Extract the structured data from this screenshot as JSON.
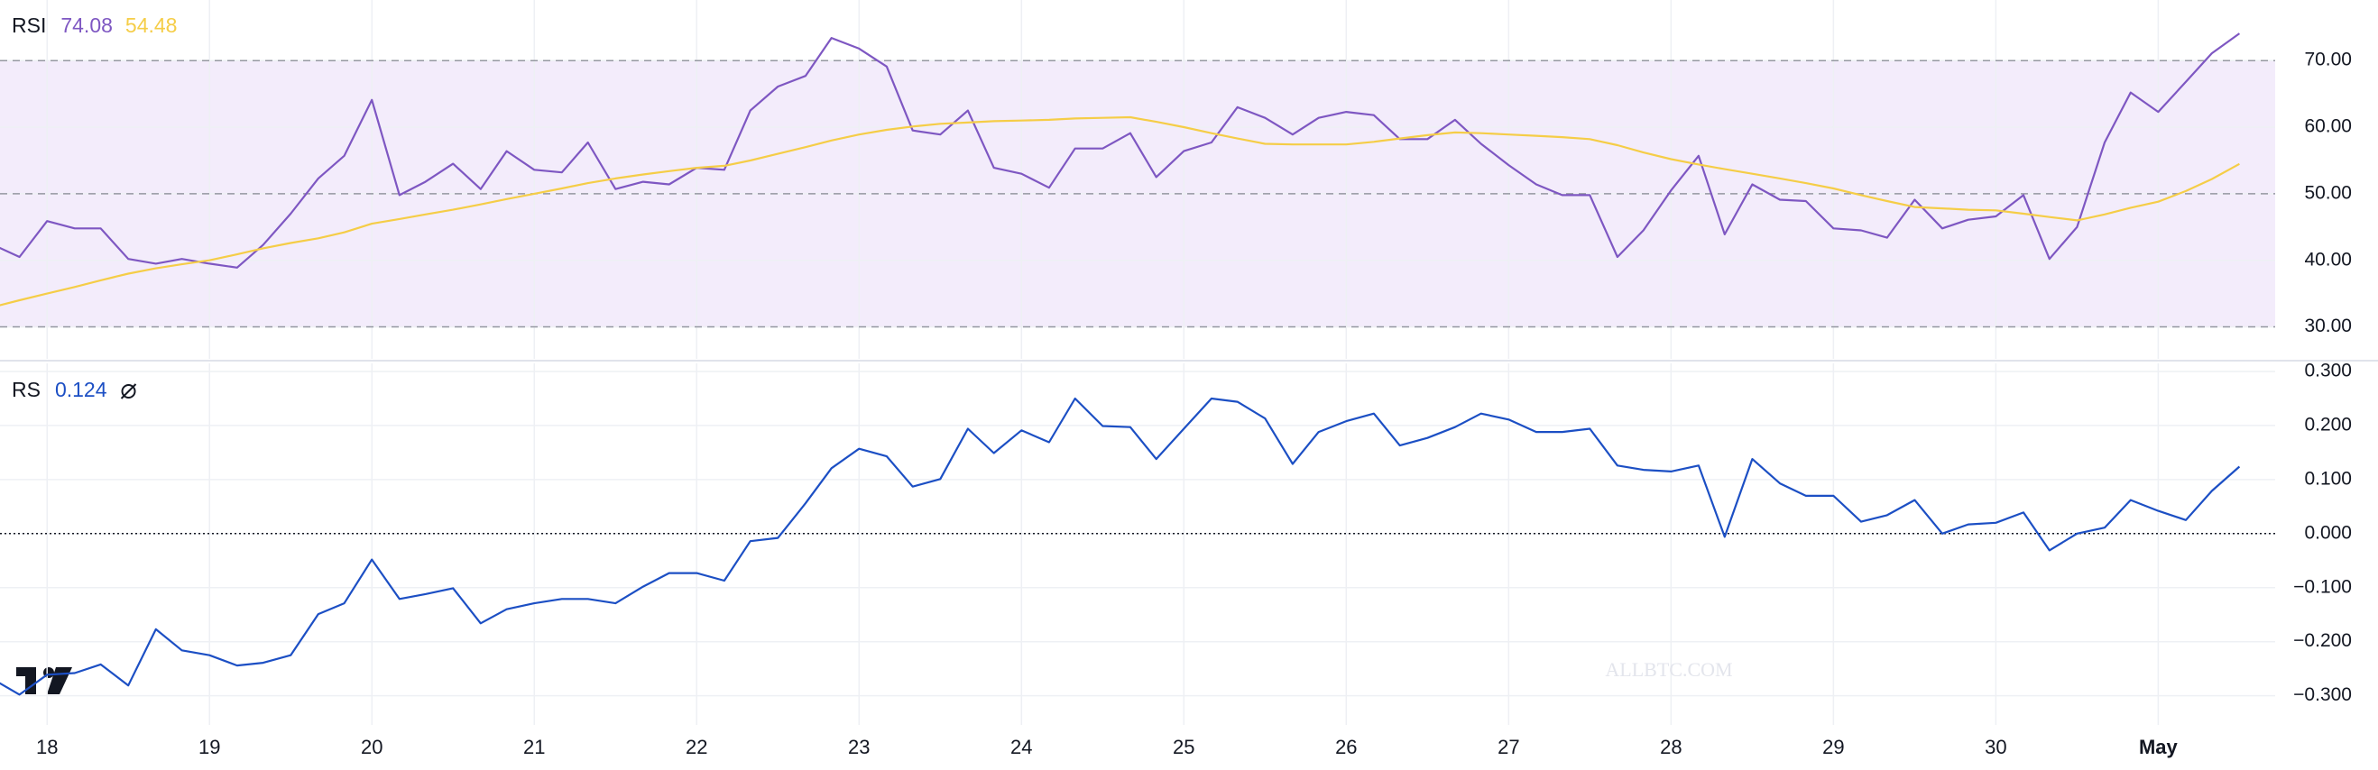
{
  "chart_data": [
    {
      "type": "line",
      "title": "RSI",
      "x": [
        17.67,
        17.83,
        18,
        18.17,
        18.33,
        18.5,
        18.67,
        18.83,
        19,
        19.17,
        19.33,
        19.5,
        19.67,
        19.83,
        20,
        20.17,
        20.33,
        20.5,
        20.67,
        20.83,
        21,
        21.17,
        21.33,
        21.5,
        21.67,
        21.83,
        22,
        22.17,
        22.33,
        22.5,
        22.67,
        22.83,
        23,
        23.17,
        23.33,
        23.5,
        23.67,
        23.83,
        24,
        24.17,
        24.33,
        24.5,
        24.67,
        24.83,
        25,
        25.17,
        25.33,
        25.5,
        25.67,
        25.83,
        26,
        26.17,
        26.33,
        26.5,
        26.67,
        26.83,
        27,
        27.17,
        27.33,
        27.5,
        27.67,
        27.83,
        28,
        28.17,
        28.33,
        28.5,
        28.67,
        28.83,
        29,
        29.17,
        29.33,
        29.5,
        29.67,
        29.83,
        30,
        30.17,
        30.33,
        30.5,
        30.67,
        30.83,
        31,
        31.17,
        31.33,
        31.5
      ],
      "series": [
        {
          "color": "#7e57c2",
          "values": [
            42.3,
            40.5,
            45.9,
            44.8,
            44.8,
            40.2,
            39.5,
            40.2,
            39.5,
            38.9,
            42.3,
            47.0,
            52.3,
            55.7,
            64.1,
            49.8,
            51.8,
            54.5,
            50.7,
            56.4,
            53.6,
            53.2,
            57.7,
            50.7,
            51.8,
            51.4,
            53.9,
            53.6,
            62.5,
            66.1,
            67.7,
            73.4,
            71.8,
            69.1,
            59.5,
            58.9,
            62.5,
            53.9,
            53.0,
            50.9,
            56.8,
            56.8,
            59.1,
            52.5,
            56.4,
            57.7,
            63.0,
            61.4,
            58.9,
            61.4,
            62.3,
            61.8,
            58.2,
            58.2,
            61.1,
            57.5,
            54.3,
            51.4,
            49.8,
            49.8,
            40.5,
            44.5,
            50.5,
            55.7,
            43.9,
            51.4,
            49.1,
            48.9,
            44.8,
            44.5,
            43.4,
            49.1,
            44.8,
            46.1,
            46.6,
            49.8,
            40.2,
            45.0,
            57.7,
            65.2,
            62.3,
            66.8,
            71.1,
            74.08
          ]
        },
        {
          "color": "#f5cd47",
          "values": [
            33.0,
            34.0,
            35.0,
            36.0,
            37.0,
            38.0,
            38.8,
            39.4,
            40.0,
            40.9,
            41.8,
            42.6,
            43.3,
            44.2,
            45.5,
            46.2,
            46.9,
            47.6,
            48.4,
            49.2,
            50.0,
            50.8,
            51.6,
            52.3,
            52.9,
            53.4,
            53.9,
            54.2,
            55.0,
            56.0,
            57.0,
            58.0,
            58.9,
            59.6,
            60.1,
            60.5,
            60.7,
            60.9,
            61.0,
            61.1,
            61.3,
            61.4,
            61.5,
            60.8,
            60.0,
            59.1,
            58.3,
            57.5,
            57.4,
            57.4,
            57.4,
            57.8,
            58.3,
            58.8,
            59.2,
            59.1,
            58.9,
            58.7,
            58.5,
            58.2,
            57.3,
            56.2,
            55.2,
            54.4,
            53.7,
            53.0,
            52.3,
            51.6,
            50.8,
            49.8,
            48.9,
            48.0,
            47.8,
            47.6,
            47.5,
            47.0,
            46.5,
            46.0,
            46.9,
            47.9,
            48.8,
            50.4,
            52.2,
            54.48
          ]
        }
      ],
      "xlim": [
        17.71,
        31.72
      ],
      "ylim": [
        25.2,
        79.1
      ],
      "xticks": [
        18,
        19,
        20,
        21,
        22,
        23,
        24,
        25,
        26,
        27,
        28,
        29,
        30,
        31
      ],
      "yticks": [
        {
          "value": 30,
          "label": "30.00"
        },
        {
          "value": 40,
          "label": "40.00"
        },
        {
          "value": 50,
          "label": "50.00"
        },
        {
          "value": 60,
          "label": "60.00"
        },
        {
          "value": 70,
          "label": "70.00"
        }
      ],
      "levels": [
        30,
        50,
        70
      ],
      "band_color": "#f3ecfb",
      "grid": true
    },
    {
      "type": "line",
      "title": "RS",
      "watermark": "ALLBTC.COM",
      "x": [
        17.67,
        17.83,
        18,
        18.17,
        18.33,
        18.5,
        18.67,
        18.83,
        19,
        19.17,
        19.33,
        19.5,
        19.67,
        19.83,
        20,
        20.17,
        20.33,
        20.5,
        20.67,
        20.83,
        21,
        21.17,
        21.33,
        21.5,
        21.67,
        21.83,
        22,
        22.17,
        22.33,
        22.5,
        22.67,
        22.83,
        23,
        23.17,
        23.33,
        23.5,
        23.67,
        23.83,
        24,
        24.17,
        24.33,
        24.5,
        24.67,
        24.83,
        25,
        25.17,
        25.33,
        25.5,
        25.67,
        25.83,
        26,
        26.17,
        26.33,
        26.5,
        26.67,
        26.83,
        27,
        27.17,
        27.33,
        27.5,
        27.67,
        27.83,
        28,
        28.17,
        28.33,
        28.5,
        28.67,
        28.83,
        29,
        29.17,
        29.33,
        29.5,
        29.67,
        29.83,
        30,
        30.17,
        30.33,
        30.5,
        30.67,
        30.83,
        31,
        31.17,
        31.33,
        31.5
      ],
      "series": [
        {
          "color": "#1c4fc4",
          "values": [
            -0.27,
            -0.298,
            -0.261,
            -0.258,
            -0.242,
            -0.281,
            -0.177,
            -0.216,
            -0.225,
            -0.244,
            -0.239,
            -0.225,
            -0.149,
            -0.129,
            -0.048,
            -0.121,
            -0.112,
            -0.101,
            -0.166,
            -0.14,
            -0.129,
            -0.121,
            -0.121,
            -0.129,
            -0.098,
            -0.073,
            -0.073,
            -0.087,
            -0.014,
            -0.008,
            0.056,
            0.121,
            0.157,
            0.143,
            0.087,
            0.101,
            0.194,
            0.149,
            0.191,
            0.169,
            0.25,
            0.199,
            0.197,
            0.138,
            0.194,
            0.25,
            0.244,
            0.213,
            0.129,
            0.188,
            0.208,
            0.222,
            0.163,
            0.177,
            0.197,
            0.222,
            0.211,
            0.188,
            0.188,
            0.194,
            0.126,
            0.118,
            0.115,
            0.126,
            -0.006,
            0.138,
            0.093,
            0.07,
            0.07,
            0.022,
            0.034,
            0.062,
            0.0,
            0.017,
            0.02,
            0.039,
            -0.031,
            0.0,
            0.011,
            0.062,
            0.042,
            0.025,
            0.079,
            0.124
          ]
        }
      ],
      "xlim": [
        17.71,
        31.72
      ],
      "ylim": [
        -0.354,
        0.315
      ],
      "xticks": [
        18,
        19,
        20,
        21,
        22,
        23,
        24,
        25,
        26,
        27,
        28,
        29,
        30,
        {
          "value": 31,
          "label": "May"
        }
      ],
      "yticks": [
        {
          "value": -0.3,
          "label": "−0.300"
        },
        {
          "value": -0.2,
          "label": "−0.200"
        },
        {
          "value": -0.1,
          "label": "−0.100"
        },
        {
          "value": 0,
          "label": "0.000"
        },
        {
          "value": 0.1,
          "label": "0.100"
        },
        {
          "value": 0.2,
          "label": "0.200"
        },
        {
          "value": 0.3,
          "label": "0.300"
        }
      ],
      "levels": [
        0
      ],
      "grid": true
    }
  ]
}
